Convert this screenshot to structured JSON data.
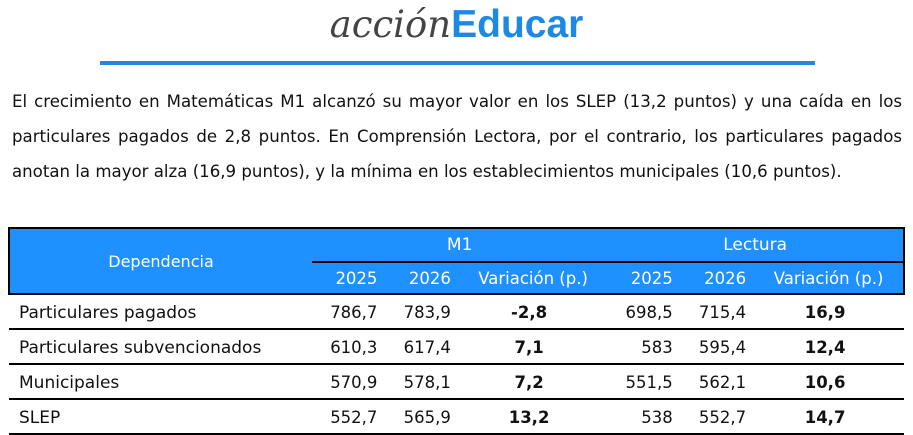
{
  "logo": {
    "part1": "acción",
    "part2": "Educar"
  },
  "paragraph": "El crecimiento en Matemáticas M1 alcanzó su mayor valor en los SLEP (13,2 puntos) y una caída en los particulares pagados de 2,8 puntos. En Comprensión Lectora, por el contrario, los particulares pagados anotan la mayor alza (16,9 puntos), y la mínima en los establecimientos municipales (10,6 puntos).",
  "table": {
    "header": {
      "dependencia": "Dependencia",
      "m1": "M1",
      "lectura": "Lectura",
      "cols": [
        "2025",
        "2026",
        "Variación (p.)",
        "2025",
        "2026",
        "Variación (p.)"
      ]
    },
    "rows": [
      {
        "label": "Particulares pagados",
        "cells": [
          "786,7",
          "783,9",
          "-2,8",
          "698,5",
          "715,4",
          "16,9"
        ]
      },
      {
        "label": "Particulares subvencionados",
        "cells": [
          "610,3",
          "617,4",
          "7,1",
          "583",
          "595,4",
          "12,4"
        ]
      },
      {
        "label": "Municipales",
        "cells": [
          "570,9",
          "578,1",
          "7,2",
          "551,5",
          "562,1",
          "10,6"
        ]
      },
      {
        "label": "SLEP",
        "cells": [
          "552,7",
          "565,9",
          "13,2",
          "538",
          "552,7",
          "14,7"
        ]
      }
    ]
  }
}
